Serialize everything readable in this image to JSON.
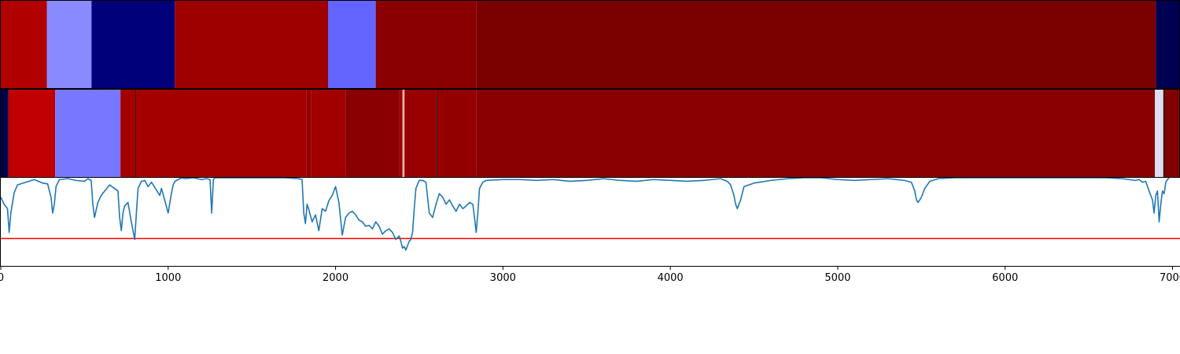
{
  "chart_data": {
    "type": "heatmap",
    "xlim": [
      0,
      7040
    ],
    "x_ticks": [
      0,
      1000,
      2000,
      3000,
      4000,
      5000,
      6000,
      7000
    ],
    "x_tick_labels": [
      "0",
      "1000",
      "2000",
      "3000",
      "4000",
      "5000",
      "6000",
      "7000"
    ],
    "tracks": [
      {
        "segments": [
          {
            "start": 0,
            "end": 275,
            "color": "#b00000"
          },
          {
            "start": 275,
            "end": 542,
            "color": "#8a8aff"
          },
          {
            "start": 542,
            "end": 1040,
            "color": "#00007a"
          },
          {
            "start": 1040,
            "end": 1955,
            "color": "#9e0000"
          },
          {
            "start": 1955,
            "end": 2240,
            "color": "#6464ff"
          },
          {
            "start": 2240,
            "end": 2840,
            "color": "#8a0000"
          },
          {
            "start": 2840,
            "end": 6900,
            "color": "#7b0000"
          },
          {
            "start": 6900,
            "end": 7040,
            "color": "#000050"
          }
        ]
      },
      {
        "segments": [
          {
            "start": 0,
            "end": 45,
            "color": "#00004a"
          },
          {
            "start": 45,
            "end": 325,
            "color": "#c00000"
          },
          {
            "start": 325,
            "end": 715,
            "color": "#7878ff"
          },
          {
            "start": 715,
            "end": 800,
            "color": "#a50000"
          },
          {
            "start": 800,
            "end": 806,
            "color": "#400000"
          },
          {
            "start": 806,
            "end": 1825,
            "color": "#a50000"
          },
          {
            "start": 1825,
            "end": 1855,
            "color": "#950000"
          },
          {
            "start": 1855,
            "end": 2060,
            "color": "#a20000"
          },
          {
            "start": 2060,
            "end": 2380,
            "color": "#8a0000"
          },
          {
            "start": 2380,
            "end": 2400,
            "color": "#9e0000"
          },
          {
            "start": 2400,
            "end": 2412,
            "color": "#f0b0b0"
          },
          {
            "start": 2412,
            "end": 2600,
            "color": "#980000"
          },
          {
            "start": 2600,
            "end": 2608,
            "color": "#500000"
          },
          {
            "start": 2608,
            "end": 2840,
            "color": "#920000"
          },
          {
            "start": 2840,
            "end": 6895,
            "color": "#8a0000"
          },
          {
            "start": 6895,
            "end": 6945,
            "color": "#dcdcf5"
          },
          {
            "start": 6945,
            "end": 6955,
            "color": "#400000"
          },
          {
            "start": 6955,
            "end": 7040,
            "color": "#820000"
          }
        ]
      }
    ],
    "line_series": {
      "color": "#1f77b4",
      "ylim": [
        0,
        1
      ],
      "threshold": {
        "value": 0.31,
        "color": "#ff0000"
      },
      "x": [
        0,
        20,
        40,
        50,
        60,
        80,
        100,
        150,
        200,
        250,
        280,
        300,
        310,
        320,
        330,
        350,
        400,
        450,
        500,
        520,
        540,
        550,
        560,
        580,
        600,
        650,
        700,
        710,
        720,
        730,
        740,
        760,
        780,
        790,
        800,
        810,
        820,
        840,
        860,
        880,
        900,
        950,
        960,
        980,
        1000,
        1020,
        1030,
        1040,
        1060,
        1080,
        1100,
        1150,
        1200,
        1230,
        1250,
        1260,
        1270,
        1280,
        1290,
        1300,
        1400,
        1500,
        1600,
        1700,
        1780,
        1800,
        1810,
        1820,
        1830,
        1840,
        1850,
        1860,
        1880,
        1900,
        1920,
        1940,
        1960,
        1980,
        2000,
        2020,
        2040,
        2050,
        2060,
        2080,
        2100,
        2120,
        2140,
        2160,
        2180,
        2200,
        2220,
        2240,
        2260,
        2280,
        2300,
        2320,
        2340,
        2360,
        2380,
        2390,
        2400,
        2410,
        2420,
        2440,
        2450,
        2460,
        2470,
        2480,
        2500,
        2520,
        2540,
        2560,
        2580,
        2600,
        2620,
        2640,
        2660,
        2680,
        2700,
        2720,
        2740,
        2760,
        2780,
        2800,
        2820,
        2830,
        2840,
        2850,
        2860,
        2880,
        2900,
        3000,
        3100,
        3200,
        3300,
        3400,
        3500,
        3600,
        3700,
        3800,
        3900,
        4000,
        4100,
        4200,
        4300,
        4340,
        4360,
        4380,
        4390,
        4400,
        4420,
        4440,
        4500,
        4600,
        4700,
        4800,
        4900,
        5000,
        5100,
        5200,
        5300,
        5400,
        5440,
        5460,
        5470,
        5480,
        5500,
        5520,
        5550,
        5600,
        5700,
        5800,
        5900,
        6000,
        6100,
        6200,
        6300,
        6400,
        6500,
        6600,
        6700,
        6780,
        6800,
        6820,
        6840,
        6860,
        6880,
        6890,
        6900,
        6910,
        6920,
        6930,
        6940,
        6950,
        6960,
        6970,
        6980,
        7000,
        7020,
        7040
      ],
      "y": [
        0.78,
        0.7,
        0.65,
        0.38,
        0.6,
        0.83,
        0.92,
        0.95,
        0.98,
        0.94,
        0.93,
        0.78,
        0.6,
        0.7,
        0.9,
        0.98,
        0.99,
        0.97,
        0.96,
        0.99,
        0.97,
        0.7,
        0.55,
        0.72,
        0.8,
        0.92,
        0.85,
        0.55,
        0.4,
        0.6,
        0.68,
        0.72,
        0.5,
        0.4,
        0.3,
        0.6,
        0.88,
        0.96,
        0.97,
        0.9,
        0.95,
        0.8,
        0.88,
        0.74,
        0.6,
        0.83,
        0.92,
        0.96,
        0.98,
        1.0,
        0.99,
        1.0,
        0.98,
        0.99,
        0.98,
        0.6,
        0.98,
        1.0,
        1.0,
        1.0,
        1.0,
        1.0,
        1.0,
        1.0,
        0.99,
        0.98,
        0.6,
        0.48,
        0.7,
        0.64,
        0.57,
        0.5,
        0.58,
        0.4,
        0.65,
        0.62,
        0.74,
        0.8,
        0.9,
        0.72,
        0.35,
        0.45,
        0.55,
        0.6,
        0.62,
        0.58,
        0.52,
        0.5,
        0.45,
        0.46,
        0.42,
        0.5,
        0.45,
        0.36,
        0.4,
        0.42,
        0.38,
        0.3,
        0.34,
        0.28,
        0.2,
        0.22,
        0.18,
        0.28,
        0.3,
        0.38,
        0.65,
        0.88,
        0.97,
        0.97,
        0.95,
        0.6,
        0.55,
        0.7,
        0.82,
        0.78,
        0.7,
        0.75,
        0.68,
        0.62,
        0.7,
        0.65,
        0.68,
        0.72,
        0.7,
        0.55,
        0.38,
        0.6,
        0.88,
        0.95,
        0.97,
        0.98,
        0.98,
        0.97,
        0.98,
        0.96,
        0.97,
        0.99,
        0.97,
        0.96,
        0.98,
        0.97,
        0.96,
        0.97,
        0.99,
        0.96,
        0.92,
        0.8,
        0.7,
        0.65,
        0.75,
        0.9,
        0.94,
        0.97,
        0.99,
        1.0,
        1.0,
        0.98,
        0.97,
        0.98,
        0.99,
        0.97,
        0.95,
        0.85,
        0.75,
        0.72,
        0.78,
        0.88,
        0.96,
        0.99,
        1.0,
        1.0,
        1.0,
        1.0,
        1.0,
        1.0,
        1.0,
        1.0,
        1.0,
        1.0,
        0.99,
        0.97,
        0.98,
        0.95,
        0.96,
        0.85,
        0.75,
        0.6,
        0.8,
        0.85,
        0.5,
        0.7,
        0.85,
        0.82,
        0.95,
        0.98,
        1.0
      ]
    }
  }
}
